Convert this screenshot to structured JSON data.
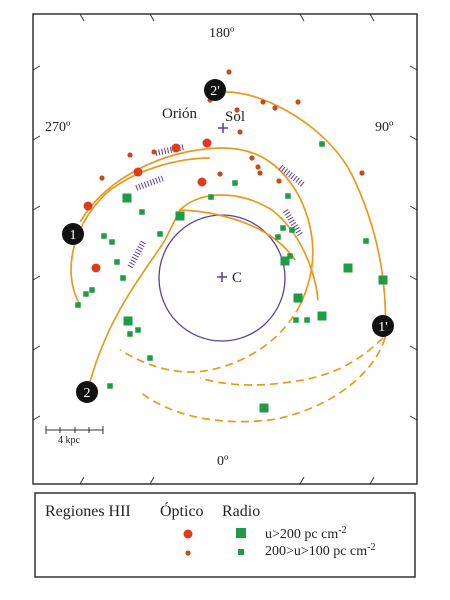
{
  "diagram": {
    "angle_labels": {
      "top": "180º",
      "left": "270º",
      "right": "90º",
      "bottom": "0º"
    },
    "place_labels": {
      "orion": "Orión",
      "sun": "Sol",
      "center": "C"
    },
    "arm_labels": [
      "1",
      "1'",
      "2",
      "2'"
    ],
    "scale_label": "4 kpc"
  },
  "legend": {
    "title": "Regiones HII",
    "optical_header": "Óptico",
    "radio_header": "Radio",
    "row_high": "u>200 pc cm",
    "row_low": "200>u>100 pc cm",
    "unit_exponent": "-2"
  },
  "colors": {
    "frame": "#333333",
    "arm": "#e89a1c",
    "circle": "#5a3f9a",
    "optical_hii": "#e03a1c",
    "radio_hii": "#1f9a45",
    "badge": "#111111"
  }
}
